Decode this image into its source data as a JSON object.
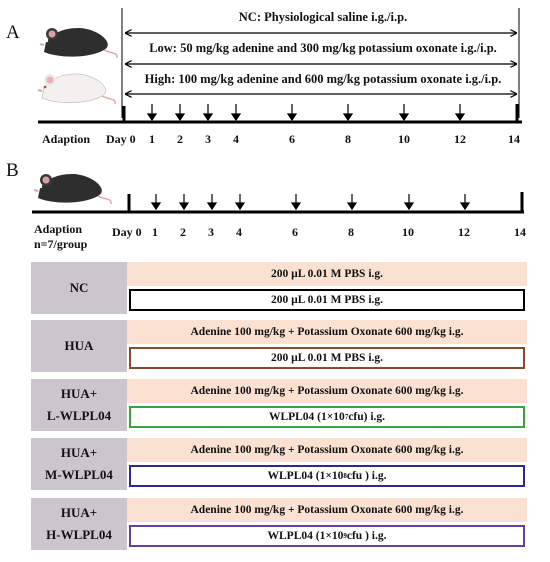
{
  "panel_a": {
    "letter": "A",
    "ranges": [
      {
        "label": "NC: Physiological saline i.g./i.p."
      },
      {
        "label": "Low: 50 mg/kg adenine and 300 mg/kg potassium oxonate i.g./i.p."
      },
      {
        "label": "High: 100 mg/kg adenine and 600 mg/kg potassium oxonate i.g./i.p."
      }
    ],
    "adaption_label": "Adaption",
    "day_labels": [
      "Day 0",
      "1",
      "2",
      "3",
      "4",
      "6",
      "8",
      "10",
      "12",
      "14"
    ]
  },
  "panel_b": {
    "letter": "B",
    "adaption_label": "Adaption",
    "group_size": "n=7/group",
    "day_labels": [
      "Day 0",
      "1",
      "2",
      "3",
      "4",
      "6",
      "8",
      "10",
      "12",
      "14"
    ],
    "groups": [
      {
        "name_line1": "NC",
        "name_line2": "",
        "top": "200 µL 0.01 M PBS i.g.",
        "bottom": "200 µL 0.01 M PBS i.g.",
        "border": "#000000"
      },
      {
        "name_line1": "HUA",
        "name_line2": "",
        "top": "Adenine 100 mg/kg + Potassium Oxonate 600 mg/kg i.g.",
        "bottom": "200 µL 0.01 M PBS i.g.",
        "border": "#8b4a2b"
      },
      {
        "name_line1": "HUA+",
        "name_line2": "L-WLPL04",
        "top": "Adenine 100 mg/kg + Potassium Oxonate 600 mg/kg i.g.",
        "bottom_pre": "WLPL04 (1×10",
        "bottom_exp": "7",
        "bottom_post": " cfu) i.g.",
        "border": "#3aa53a"
      },
      {
        "name_line1": "HUA+",
        "name_line2": "M-WLPL04",
        "top": "Adenine 100 mg/kg + Potassium Oxonate 600 mg/kg i.g.",
        "bottom_pre": "WLPL04 (1×10",
        "bottom_exp": "8",
        "bottom_post": " cfu ) i.g.",
        "border": "#2b2b8f"
      },
      {
        "name_line1": "HUA+",
        "name_line2": "H-WLPL04",
        "top": "Adenine 100 mg/kg + Potassium Oxonate 600 mg/kg i.g.",
        "bottom_pre": "WLPL04 (1×10",
        "bottom_exp": "9",
        "bottom_post": " cfu ) i.g.",
        "border": "#6a3f9a"
      }
    ]
  },
  "icons": {
    "mouse_black": "black-mouse-icon",
    "mouse_white": "white-mouse-icon"
  }
}
